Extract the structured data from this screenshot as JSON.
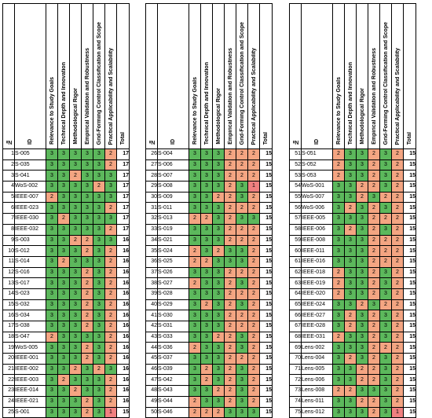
{
  "headers": [
    "№",
    "ID",
    "Relevance to Study Goals",
    "Technical Depth and Innovation",
    "Methodological Rigor",
    "Empirical Validation and Robustness",
    "Grid-Forming Control Classification and Scope",
    "Practical Applicability and Scalability",
    "Total"
  ],
  "colors": {
    "score_3": "#5cb85c",
    "score_2": "#f4a582",
    "score_1": "#f08080",
    "total_bg": "#ffffff"
  },
  "panels": [
    [
      [
        1,
        "S-005",
        3,
        3,
        3,
        3,
        3,
        2,
        17
      ],
      [
        2,
        "S-035",
        3,
        3,
        3,
        3,
        3,
        2,
        17
      ],
      [
        3,
        "S-041",
        3,
        3,
        2,
        3,
        3,
        3,
        17
      ],
      [
        4,
        "WoS-002",
        3,
        3,
        3,
        3,
        2,
        3,
        17
      ],
      [
        5,
        "IEEE-007",
        2,
        3,
        3,
        3,
        3,
        3,
        17
      ],
      [
        6,
        "IEEE-023",
        3,
        3,
        3,
        3,
        3,
        2,
        17
      ],
      [
        7,
        "IEEE-030",
        3,
        2,
        3,
        3,
        3,
        3,
        17
      ],
      [
        8,
        "IEEE-032",
        3,
        3,
        3,
        3,
        3,
        2,
        17
      ],
      [
        9,
        "S-003",
        3,
        3,
        2,
        2,
        3,
        3,
        16
      ],
      [
        10,
        "S-012",
        3,
        3,
        3,
        2,
        3,
        2,
        16
      ],
      [
        11,
        "S-014",
        3,
        2,
        3,
        3,
        3,
        2,
        16
      ],
      [
        12,
        "S-016",
        3,
        3,
        3,
        2,
        3,
        2,
        16
      ],
      [
        13,
        "S-017",
        3,
        3,
        3,
        2,
        3,
        2,
        16
      ],
      [
        14,
        "S-023",
        3,
        3,
        3,
        2,
        3,
        2,
        16
      ],
      [
        15,
        "S-032",
        3,
        3,
        3,
        2,
        3,
        2,
        16
      ],
      [
        16,
        "S-034",
        3,
        3,
        3,
        2,
        3,
        2,
        16
      ],
      [
        17,
        "S-038",
        3,
        3,
        3,
        2,
        3,
        2,
        16
      ],
      [
        18,
        "S-047",
        2,
        3,
        3,
        3,
        3,
        2,
        16
      ],
      [
        19,
        "WoS-005",
        3,
        3,
        3,
        2,
        3,
        2,
        16
      ],
      [
        20,
        "IEEE-001",
        3,
        3,
        3,
        2,
        3,
        2,
        16
      ],
      [
        21,
        "IEEE-002",
        3,
        3,
        2,
        3,
        2,
        3,
        16
      ],
      [
        22,
        "IEEE-003",
        3,
        2,
        3,
        3,
        3,
        2,
        16
      ],
      [
        23,
        "IEEE-014",
        3,
        3,
        2,
        3,
        3,
        2,
        16
      ],
      [
        24,
        "IEEE-021",
        3,
        3,
        3,
        2,
        3,
        2,
        16
      ],
      [
        25,
        "S-001",
        3,
        3,
        3,
        2,
        3,
        1,
        15
      ]
    ],
    [
      [
        26,
        "S-004",
        3,
        3,
        3,
        2,
        2,
        2,
        15
      ],
      [
        27,
        "S-006",
        3,
        3,
        3,
        2,
        2,
        2,
        15
      ],
      [
        28,
        "S-007",
        3,
        3,
        3,
        2,
        2,
        2,
        15
      ],
      [
        29,
        "S-008",
        3,
        3,
        3,
        2,
        3,
        1,
        15
      ],
      [
        30,
        "S-009",
        3,
        3,
        2,
        2,
        3,
        2,
        15
      ],
      [
        31,
        "S-011",
        3,
        3,
        3,
        2,
        2,
        2,
        15
      ],
      [
        32,
        "S-013",
        2,
        2,
        3,
        2,
        3,
        3,
        15
      ],
      [
        33,
        "S-019",
        3,
        3,
        3,
        2,
        2,
        2,
        15
      ],
      [
        34,
        "S-021",
        3,
        3,
        3,
        2,
        2,
        2,
        15
      ],
      [
        35,
        "S-024",
        2,
        3,
        2,
        3,
        3,
        2,
        15
      ],
      [
        36,
        "S-025",
        2,
        2,
        3,
        3,
        3,
        2,
        15
      ],
      [
        37,
        "S-026",
        3,
        3,
        3,
        2,
        2,
        2,
        15
      ],
      [
        38,
        "S-027",
        2,
        3,
        3,
        2,
        3,
        2,
        15
      ],
      [
        39,
        "S-028",
        3,
        3,
        3,
        2,
        2,
        2,
        15
      ],
      [
        40,
        "S-029",
        3,
        2,
        3,
        2,
        3,
        2,
        15
      ],
      [
        41,
        "S-030",
        3,
        3,
        3,
        2,
        2,
        2,
        15
      ],
      [
        42,
        "S-031",
        3,
        3,
        3,
        2,
        2,
        2,
        15
      ],
      [
        43,
        "S-033",
        3,
        3,
        2,
        2,
        3,
        2,
        15
      ],
      [
        44,
        "S-036",
        2,
        3,
        3,
        2,
        3,
        2,
        15
      ],
      [
        45,
        "S-037",
        3,
        3,
        3,
        2,
        2,
        2,
        15
      ],
      [
        46,
        "S-039",
        3,
        2,
        3,
        2,
        3,
        2,
        15
      ],
      [
        47,
        "S-042",
        3,
        2,
        3,
        2,
        3,
        2,
        15
      ],
      [
        48,
        "S-043",
        3,
        3,
        2,
        2,
        3,
        2,
        15
      ],
      [
        49,
        "S-044",
        2,
        3,
        3,
        2,
        3,
        2,
        15
      ],
      [
        50,
        "S-046",
        2,
        2,
        2,
        3,
        3,
        3,
        15
      ]
    ],
    [
      [
        51,
        "S-051",
        2,
        3,
        3,
        2,
        3,
        2,
        15
      ],
      [
        52,
        "S-052",
        2,
        3,
        3,
        2,
        3,
        2,
        15
      ],
      [
        53,
        "S-053",
        2,
        3,
        3,
        2,
        3,
        2,
        15
      ],
      [
        54,
        "WoS-001",
        3,
        3,
        2,
        2,
        3,
        2,
        15
      ],
      [
        55,
        "WoS-007",
        3,
        3,
        2,
        3,
        2,
        2,
        15
      ],
      [
        56,
        "WoS-006",
        3,
        2,
        3,
        2,
        3,
        2,
        15
      ],
      [
        57,
        "IEEE-005",
        3,
        3,
        3,
        2,
        2,
        2,
        15
      ],
      [
        58,
        "IEEE-006",
        3,
        2,
        3,
        2,
        3,
        2,
        15
      ],
      [
        59,
        "IEEE-008",
        3,
        3,
        3,
        2,
        2,
        2,
        15
      ],
      [
        60,
        "IEEE-011",
        3,
        3,
        3,
        2,
        2,
        2,
        15
      ],
      [
        61,
        "IEEE-016",
        3,
        3,
        3,
        2,
        2,
        2,
        15
      ],
      [
        62,
        "IEEE-018",
        2,
        3,
        3,
        2,
        3,
        2,
        15
      ],
      [
        63,
        "IEEE-019",
        2,
        3,
        3,
        2,
        3,
        2,
        15
      ],
      [
        64,
        "IEEE-020",
        2,
        3,
        3,
        2,
        3,
        2,
        15
      ],
      [
        65,
        "IEEE-024",
        3,
        3,
        2,
        3,
        2,
        2,
        15
      ],
      [
        66,
        "IEEE-027",
        3,
        2,
        3,
        2,
        3,
        2,
        15
      ],
      [
        67,
        "IEEE-028",
        3,
        2,
        3,
        2,
        3,
        2,
        15
      ],
      [
        68,
        "IEEE-031",
        2,
        3,
        3,
        2,
        3,
        2,
        15
      ],
      [
        69,
        "Lens-002",
        3,
        3,
        3,
        2,
        2,
        2,
        15
      ],
      [
        70,
        "Lens-004",
        3,
        2,
        3,
        2,
        3,
        2,
        15
      ],
      [
        71,
        "Lens-005",
        3,
        3,
        2,
        2,
        3,
        2,
        15
      ],
      [
        72,
        "Lens-006",
        3,
        3,
        2,
        2,
        3,
        2,
        15
      ],
      [
        73,
        "Lens-008",
        2,
        2,
        3,
        3,
        3,
        2,
        15
      ],
      [
        74,
        "Lens-011",
        3,
        3,
        2,
        2,
        3,
        2,
        15
      ],
      [
        75,
        "Lens-012",
        3,
        3,
        3,
        2,
        3,
        1,
        15
      ]
    ]
  ]
}
